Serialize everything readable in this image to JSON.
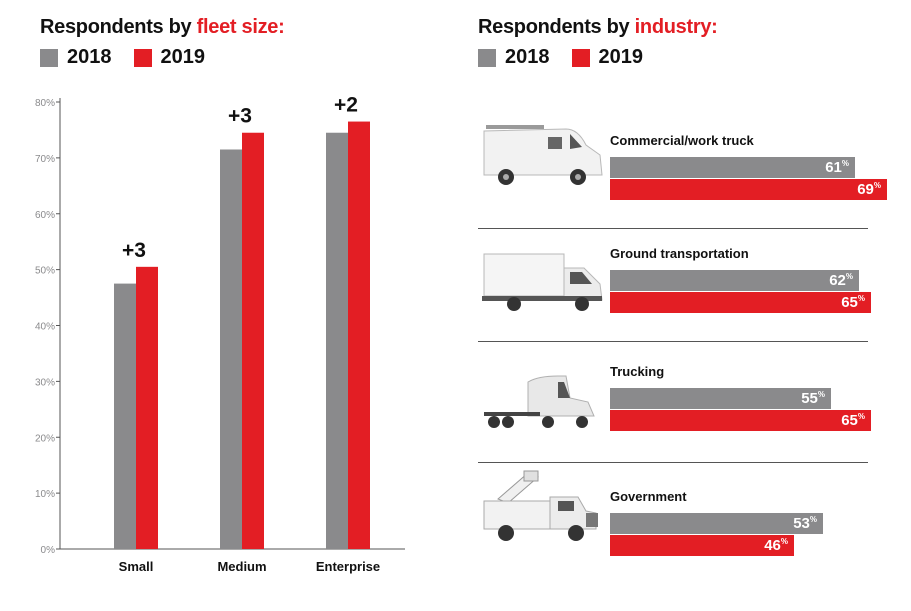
{
  "fleet": {
    "title_prefix": "Respondents by ",
    "title_highlight": "fleet size:"
  },
  "industry": {
    "title_prefix": "Respondents by ",
    "title_highlight": "industry:"
  },
  "legend": {
    "label_2018": "2018",
    "label_2019": "2019"
  },
  "colors": {
    "y2018": "#8a8a8c",
    "y2019": "#e31e24"
  },
  "pct_suffix": "%",
  "chart_data": [
    {
      "type": "bar",
      "title": "Respondents by fleet size:",
      "categories": [
        "Small",
        "Medium",
        "Enterprise"
      ],
      "series": [
        {
          "name": "2018",
          "values": [
            47.5,
            71.5,
            74.5
          ]
        },
        {
          "name": "2019",
          "values": [
            50.5,
            74.5,
            76.5
          ]
        }
      ],
      "annotations": [
        "+3",
        "+3",
        "+2"
      ],
      "y_ticks": [
        "0%",
        "10%",
        "20%",
        "30%",
        "40%",
        "50%",
        "60%",
        "70%",
        "80%"
      ],
      "ylim": [
        0,
        80
      ],
      "legend": "top-left",
      "grid": false
    },
    {
      "type": "bar",
      "orientation": "horizontal",
      "title": "Respondents by industry:",
      "categories": [
        "Commercial/work truck",
        "Ground transportation",
        "Trucking",
        "Government"
      ],
      "series": [
        {
          "name": "2018",
          "values": [
            61,
            62,
            55,
            53
          ]
        },
        {
          "name": "2019",
          "values": [
            69,
            65,
            65,
            46
          ]
        }
      ],
      "legend": "top-left"
    }
  ],
  "vehicles": [
    "van-icon",
    "box-truck-icon",
    "semi-truck-icon",
    "utility-truck-icon"
  ]
}
